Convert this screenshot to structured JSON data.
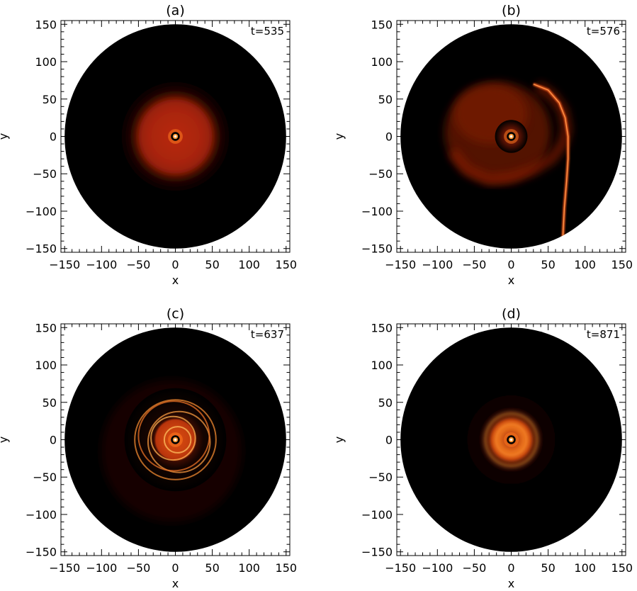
{
  "chart_data": [
    {
      "type": "heatmap",
      "title": "(a)",
      "annotation": "t=535",
      "xlabel": "x",
      "ylabel": "y",
      "xlim": [
        -155,
        155
      ],
      "ylim": [
        -155,
        155
      ],
      "xticks": [
        -150,
        -100,
        -50,
        0,
        50,
        100,
        150
      ],
      "yticks": [
        -150,
        -100,
        -50,
        0,
        50,
        100,
        150
      ],
      "xtick_labels": [
        "−150",
        "−100",
        "−50",
        "0",
        "50",
        "100",
        "150"
      ],
      "ytick_labels": [
        "−150",
        "−100",
        "−50",
        "0",
        "50",
        "100",
        "150"
      ],
      "disk_radius": 150,
      "features": {
        "disk_radius": 75,
        "morphology": "diffuse disk"
      },
      "colormap": "red-temperature",
      "background_color": "#000000"
    },
    {
      "type": "heatmap",
      "title": "(b)",
      "annotation": "t=576",
      "xlabel": "x",
      "ylabel": "y",
      "xlim": [
        -155,
        155
      ],
      "ylim": [
        -155,
        155
      ],
      "xticks": [
        -150,
        -100,
        -50,
        0,
        50,
        100,
        150
      ],
      "yticks": [
        -150,
        -100,
        -50,
        0,
        50,
        100,
        150
      ],
      "xtick_labels": [
        "−150",
        "−100",
        "−50",
        "0",
        "50",
        "100",
        "150"
      ],
      "ytick_labels": [
        "−150",
        "−100",
        "−50",
        "0",
        "50",
        "100",
        "150"
      ],
      "disk_radius": 150,
      "features": {
        "morphology": "tidal tail",
        "tail_tip": [
          70,
          -135
        ]
      },
      "colormap": "red-temperature",
      "background_color": "#000000"
    },
    {
      "type": "heatmap",
      "title": "(c)",
      "annotation": "t=637",
      "xlabel": "x",
      "ylabel": "y",
      "xlim": [
        -155,
        155
      ],
      "ylim": [
        -155,
        155
      ],
      "xticks": [
        -150,
        -100,
        -50,
        0,
        50,
        100,
        150
      ],
      "yticks": [
        -150,
        -100,
        -50,
        0,
        50,
        100,
        150
      ],
      "xtick_labels": [
        "−150",
        "−100",
        "−50",
        "0",
        "50",
        "100",
        "150"
      ],
      "ytick_labels": [
        "−150",
        "−100",
        "−50",
        "0",
        "50",
        "100",
        "150"
      ],
      "disk_radius": 150,
      "features": {
        "disk_radius": 60,
        "morphology": "spiral rings"
      },
      "colormap": "red-temperature",
      "background_color": "#000000"
    },
    {
      "type": "heatmap",
      "title": "(d)",
      "annotation": "t=871",
      "xlabel": "x",
      "ylabel": "y",
      "xlim": [
        -155,
        155
      ],
      "ylim": [
        -155,
        155
      ],
      "xticks": [
        -150,
        -100,
        -50,
        0,
        50,
        100,
        150
      ],
      "yticks": [
        -150,
        -100,
        -50,
        0,
        50,
        100,
        150
      ],
      "xtick_labels": [
        "−150",
        "−100",
        "−50",
        "0",
        "50",
        "100",
        "150"
      ],
      "ytick_labels": [
        "−150",
        "−100",
        "−50",
        "0",
        "50",
        "100",
        "150"
      ],
      "disk_radius": 150,
      "features": {
        "disk_radius": 60,
        "ring_radius": 35,
        "morphology": "bright ring"
      },
      "colormap": "red-temperature",
      "background_color": "#000000"
    }
  ]
}
